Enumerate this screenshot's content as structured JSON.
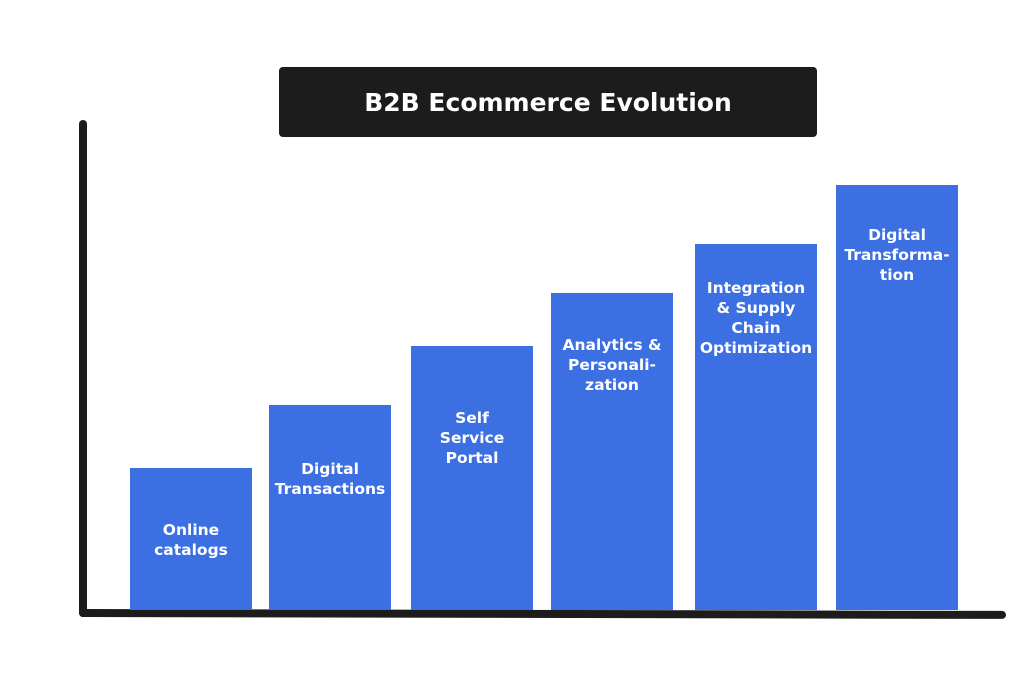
{
  "chart_data": {
    "type": "bar",
    "title": "B2B Ecommerce Evolution",
    "categories": [
      "Online\ncatalogs",
      "Digital\nTransactions",
      "Self\nService\nPortal",
      "Analytics &\nPersonali-\nzation",
      "Integration\n& Supply\nChain\nOptimization",
      "Digital\nTransforma-\ntion"
    ],
    "values": [
      29,
      42,
      54,
      65,
      75,
      87
    ],
    "color": "#3c6fe2",
    "ylim": [
      0,
      100
    ]
  }
}
